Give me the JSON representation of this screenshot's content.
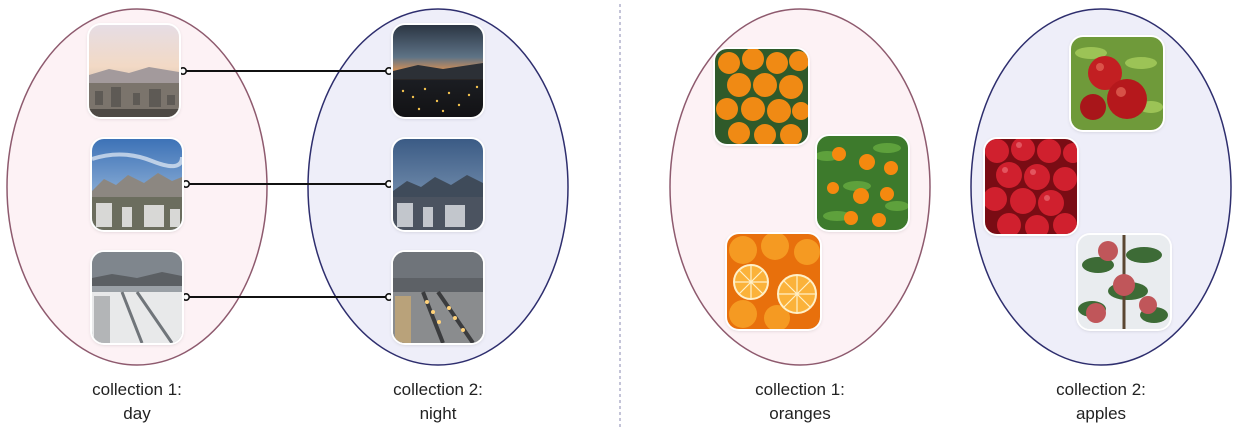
{
  "colors": {
    "left_set_fill": "#fdf2f5",
    "left_set_stroke": "#8e5a6e",
    "right_set_fill": "#eeeef9",
    "right_set_stroke": "#2e2e6e",
    "divider": "#8a8ab0",
    "connector": "#111111"
  },
  "panels": [
    {
      "name": "day-night",
      "collection_1": {
        "line1": "collection 1:",
        "line2": "day",
        "images": [
          "city-day-overview",
          "mountain-city-day",
          "snowy-road-day"
        ]
      },
      "collection_2": {
        "line1": "collection 2:",
        "line2": "night",
        "images": [
          "city-night-overview",
          "mountain-city-dusk",
          "snowy-road-night"
        ]
      },
      "pairs": [
        [
          0,
          0
        ],
        [
          1,
          1
        ],
        [
          2,
          2
        ]
      ]
    },
    {
      "name": "oranges-apples",
      "collection_1": {
        "line1": "collection 1:",
        "line2": "oranges",
        "images": [
          "oranges-pile",
          "oranges-on-tree",
          "oranges-sliced"
        ]
      },
      "collection_2": {
        "line1": "collection 2:",
        "line2": "apples",
        "images": [
          "red-apples-on-branch",
          "red-apples-pile",
          "apples-on-tree"
        ]
      }
    }
  ]
}
